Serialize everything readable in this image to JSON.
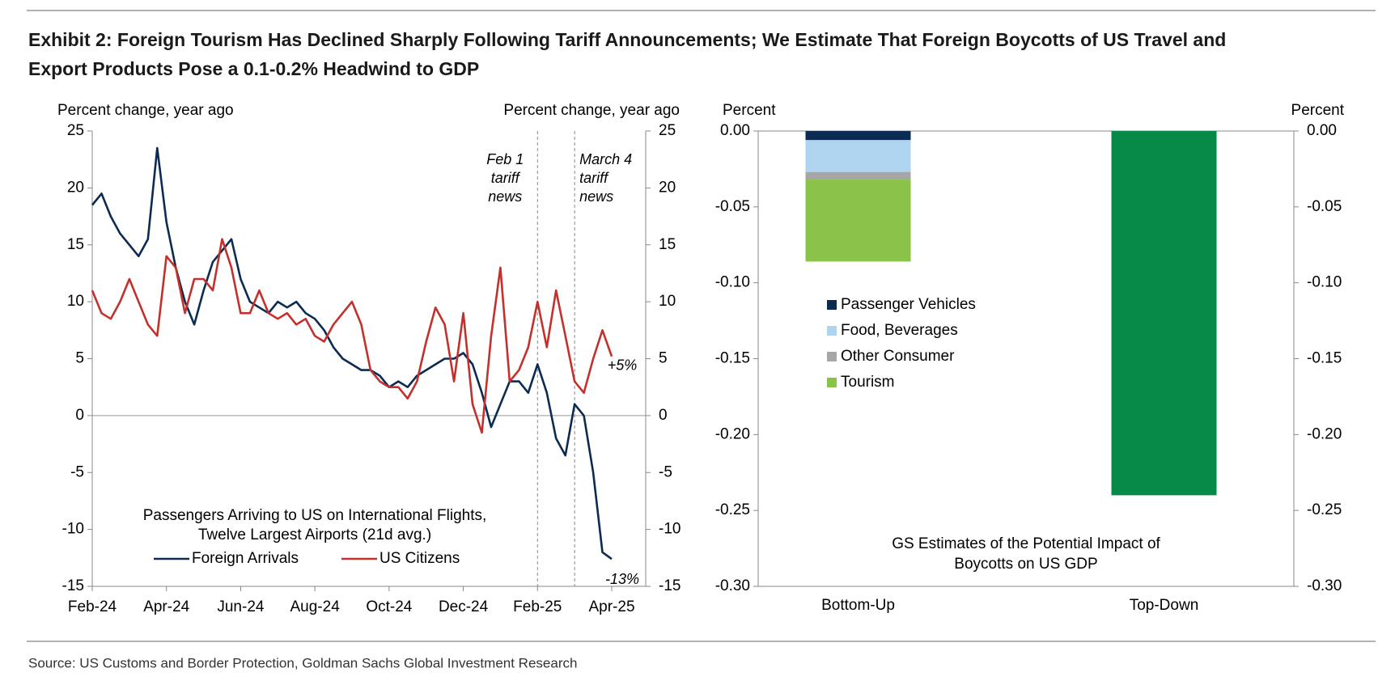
{
  "header": {
    "title": [
      "Exhibit 2: Foreign Tourism Has Declined Sharply Following Tariff Announcements; We Estimate That Foreign Boycotts of US Travel and",
      "Export Products Pose a 0.1-0.2% Headwind to GDP"
    ]
  },
  "chart_data": [
    {
      "type": "line",
      "y_label": "Percent change, year ago",
      "y2_label": "Percent change, year ago",
      "legend_title": [
        "Passengers Arriving to US on International Flights,",
        "Twelve Largest Airports (21d avg.)"
      ],
      "annotations": [
        [
          "Feb 1",
          "tariff",
          "news"
        ],
        [
          "March 4",
          "tariff",
          "news"
        ]
      ],
      "categories": [
        "Feb-24",
        null,
        null,
        null,
        null,
        null,
        null,
        null,
        "Apr-24",
        null,
        null,
        null,
        null,
        null,
        null,
        null,
        "Jun-24",
        null,
        null,
        null,
        null,
        null,
        null,
        null,
        "Aug-24",
        null,
        null,
        null,
        null,
        null,
        null,
        null,
        "Oct-24",
        null,
        null,
        null,
        null,
        null,
        null,
        null,
        "Dec-24",
        null,
        null,
        null,
        null,
        null,
        null,
        null,
        "Feb-25",
        null,
        null,
        null,
        null,
        null,
        null,
        null,
        "Apr-25"
      ],
      "series": [
        {
          "name": "Foreign Arrivals",
          "color": "#0c2b52",
          "values": [
            18.5,
            19.5,
            17.5,
            16,
            15,
            14,
            15.5,
            23.5,
            17,
            13,
            10,
            8,
            11,
            13.5,
            14.5,
            15.5,
            12,
            10,
            9.5,
            9,
            10,
            9.5,
            10,
            9,
            8.5,
            7.5,
            6,
            5,
            4.5,
            4,
            4,
            3.5,
            2.5,
            3,
            2.5,
            3.5,
            4,
            4.5,
            5,
            5,
            5.5,
            4.5,
            2,
            -1,
            1,
            3,
            3,
            2,
            4.5,
            2,
            -2,
            -3.5,
            1,
            0,
            -5,
            -12,
            -12.6
          ],
          "value_labels": [
            null,
            null,
            null,
            null,
            null,
            null,
            null,
            null,
            null,
            null,
            null,
            null,
            null,
            null,
            null,
            null,
            null,
            null,
            null,
            null,
            null,
            null,
            null,
            null,
            null,
            null,
            null,
            null,
            null,
            null,
            null,
            null,
            null,
            null,
            null,
            null,
            null,
            null,
            null,
            null,
            null,
            null,
            null,
            null,
            null,
            null,
            null,
            null,
            null,
            null,
            null,
            null,
            null,
            null,
            null,
            null,
            "-13%"
          ]
        },
        {
          "name": "US Citizens",
          "color": "#c4302b",
          "values": [
            11,
            9,
            8.5,
            10,
            12,
            10,
            8,
            7,
            14,
            13,
            9,
            12,
            12,
            11,
            15.5,
            13,
            9,
            9,
            11,
            9,
            8.5,
            9,
            8,
            8.5,
            7,
            6.5,
            8,
            9,
            10,
            8,
            4,
            3,
            2.5,
            2.5,
            1.5,
            3,
            6.5,
            9.5,
            8,
            3,
            9,
            1,
            -1.5,
            7,
            13,
            3,
            4,
            6,
            10,
            6,
            11,
            7,
            3,
            2,
            5,
            7.5,
            5.2
          ],
          "value_labels": [
            null,
            null,
            null,
            null,
            null,
            null,
            null,
            null,
            null,
            null,
            null,
            null,
            null,
            null,
            null,
            null,
            null,
            null,
            null,
            null,
            null,
            null,
            null,
            null,
            null,
            null,
            null,
            null,
            null,
            null,
            null,
            null,
            null,
            null,
            null,
            null,
            null,
            null,
            null,
            null,
            null,
            null,
            null,
            null,
            null,
            null,
            null,
            null,
            null,
            null,
            null,
            null,
            null,
            null,
            null,
            null,
            "+5%"
          ]
        }
      ],
      "ylim": [
        -15,
        25
      ],
      "yticks": [
        -15,
        -10,
        -5,
        0,
        5,
        10,
        15,
        20,
        25
      ],
      "y2lim": [
        -15,
        25
      ],
      "y2ticks": [
        -15,
        -10,
        -5,
        0,
        5,
        10,
        15,
        20,
        25
      ]
    },
    {
      "type": "bar",
      "stacked": true,
      "y_label": "Percent",
      "y2_label": "Percent",
      "annotation": [
        "GS Estimates of the Potential Impact of",
        "Boycotts on US GDP"
      ],
      "categories": [
        "Bottom-Up",
        "Top-Down"
      ],
      "series": [
        {
          "name": "Passenger Vehicles",
          "color": "#0c2b52",
          "values": [
            -0.006,
            null
          ]
        },
        {
          "name": "Food, Beverages",
          "color": "#aed4f0",
          "values": [
            -0.021,
            null
          ]
        },
        {
          "name": "Other Consumer",
          "color": "#a6a6a6",
          "values": [
            -0.005,
            null
          ]
        },
        {
          "name": "Tourism",
          "color": "#8bc34a",
          "values": [
            -0.054,
            null
          ]
        },
        {
          "color": "#078a47",
          "values": [
            null,
            -0.24
          ]
        }
      ],
      "ylim": [
        -0.3,
        0
      ],
      "yticks": [
        {
          "value": -0.3,
          "label": "-0.30"
        },
        {
          "value": -0.25,
          "label": "-0.25"
        },
        {
          "value": -0.2,
          "label": "-0.20"
        },
        {
          "value": -0.15,
          "label": "-0.15"
        },
        {
          "value": -0.1,
          "label": "-0.10"
        },
        {
          "value": -0.05,
          "label": "-0.05"
        },
        {
          "value": 0,
          "label": "0.00"
        }
      ],
      "y2lim": [
        -0.3,
        0
      ],
      "y2ticks": [
        {
          "value": -0.3,
          "label": "-0.30"
        },
        {
          "value": -0.25,
          "label": "-0.25"
        },
        {
          "value": -0.2,
          "label": "-0.20"
        },
        {
          "value": -0.15,
          "label": "-0.15"
        },
        {
          "value": -0.1,
          "label": "-0.10"
        },
        {
          "value": -0.05,
          "label": "-0.05"
        },
        {
          "value": 0,
          "label": "0.00"
        }
      ]
    }
  ],
  "footer": {
    "source": "Source: US Customs and Border Protection, Goldman Sachs Global Investment Research"
  }
}
